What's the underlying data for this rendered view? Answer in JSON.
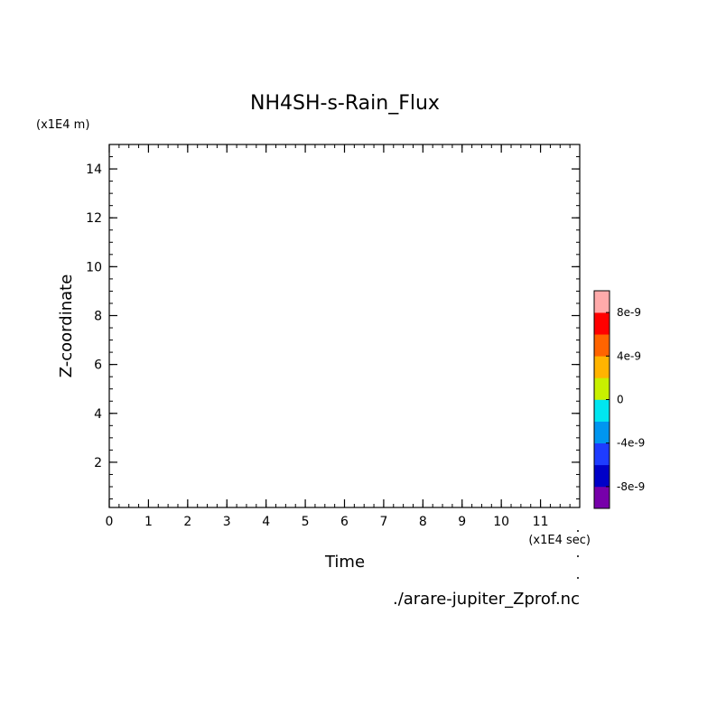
{
  "chart_data": {
    "type": "heatmap",
    "title": "NH4SH-s-Rain_Flux",
    "xlabel": "Time",
    "ylabel": "Z-coordinate",
    "x_unit": "(x1E4 sec)",
    "y_unit": "(x1E4 m)",
    "source_file": "./arare-jupiter_Zprof.nc",
    "xlim": [
      0,
      12
    ],
    "ylim": [
      0.15,
      15
    ],
    "x_ticks": [
      0,
      1,
      2,
      3,
      4,
      5,
      6,
      7,
      8,
      9,
      10,
      11
    ],
    "x_tick_labels": [
      "0",
      "1",
      "2",
      "3",
      "4",
      "5",
      "6",
      "7",
      "8",
      "9",
      "10",
      "11"
    ],
    "y_ticks": [
      2,
      4,
      6,
      8,
      10,
      12,
      14
    ],
    "y_tick_labels": [
      "2",
      "4",
      "6",
      "8",
      "10",
      "12",
      "14"
    ],
    "values": [],
    "grid": false,
    "colorbar": {
      "range": [
        -1e-08,
        1e-08
      ],
      "colors": [
        "#7700aa",
        "#0000c8",
        "#1e3cff",
        "#0096f0",
        "#00e6f0",
        "#c8f000",
        "#ffb400",
        "#ff6400",
        "#ff0000",
        "#ffaaaa"
      ],
      "ticks": [
        8e-09,
        4e-09,
        0,
        -4e-09,
        -8e-09
      ],
      "tick_labels": [
        "8e-9",
        "4e-9",
        "0",
        "-4e-9",
        "-8e-9"
      ]
    }
  }
}
